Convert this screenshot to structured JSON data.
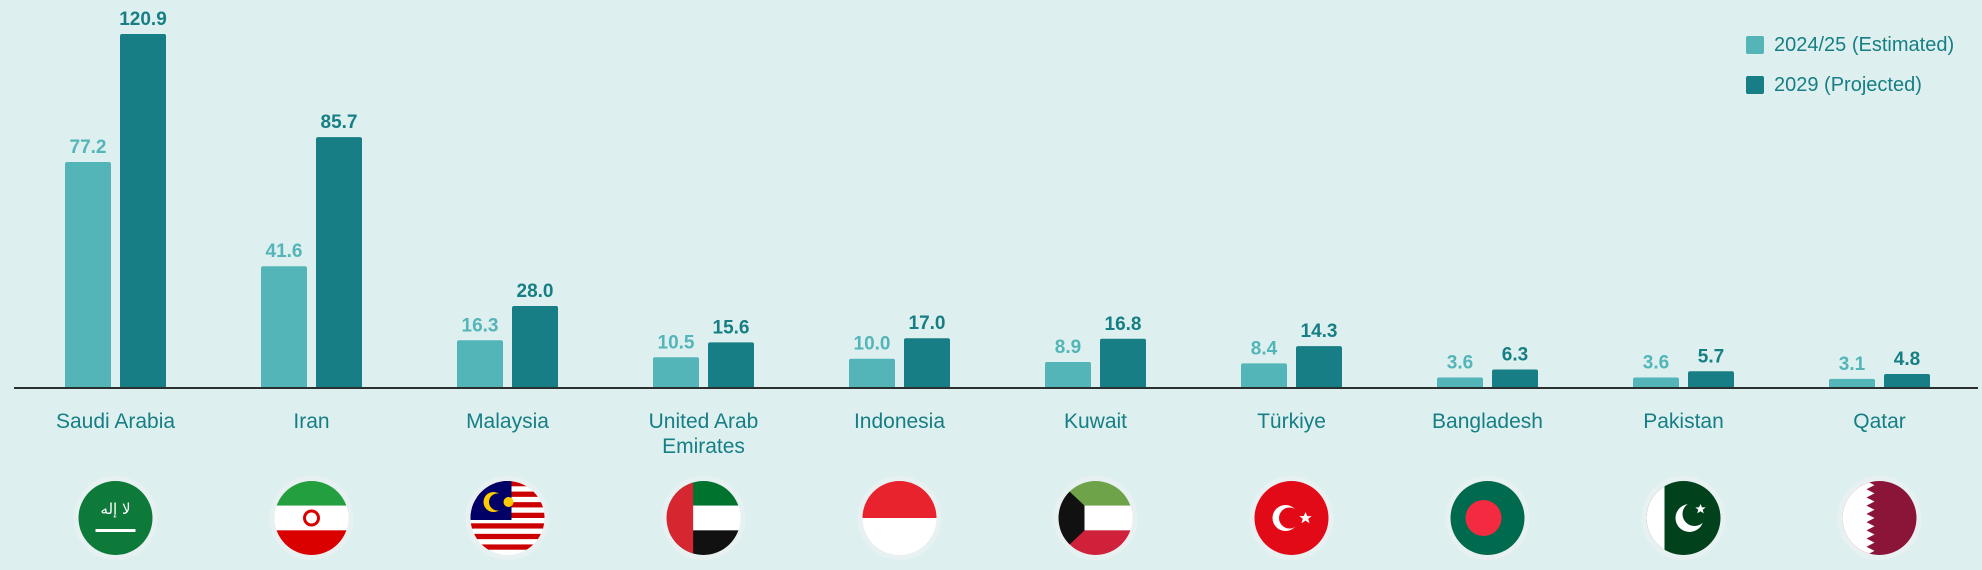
{
  "colors": {
    "background": "#ddf0ef",
    "estimated": "#54b5b9",
    "projected": "#167e84",
    "axis": "#2a2f30"
  },
  "legend": {
    "items": [
      {
        "label": "2024/25 (Estimated)",
        "color": "#54b5b9"
      },
      {
        "label": "2029 (Projected)",
        "color": "#167e84"
      }
    ],
    "position": "top-right"
  },
  "chart_data": {
    "type": "bar",
    "categories": [
      [
        "Saudi Arabia"
      ],
      [
        "Iran"
      ],
      [
        "Malaysia"
      ],
      [
        "United Arab",
        "Emirates"
      ],
      [
        "Indonesia"
      ],
      [
        "Kuwait"
      ],
      [
        "Türkiye"
      ],
      [
        "Bangladesh"
      ],
      [
        "Pakistan"
      ],
      [
        "Qatar"
      ]
    ],
    "series": [
      {
        "name": "2024/25 (Estimated)",
        "values": [
          77.2,
          41.6,
          16.3,
          10.5,
          10.0,
          8.9,
          8.4,
          3.6,
          3.6,
          3.1
        ]
      },
      {
        "name": "2029 (Projected)",
        "values": [
          120.9,
          85.7,
          28.0,
          15.6,
          17.0,
          16.8,
          14.3,
          6.3,
          5.7,
          4.8
        ]
      }
    ],
    "data_labels": [
      [
        "77.2",
        "41.6",
        "16.3",
        "10.5",
        "10.0",
        "8.9",
        "8.4",
        "3.6",
        "3.6",
        "3.1"
      ],
      [
        "120.9",
        "85.7",
        "28.0",
        "15.6",
        "17.0",
        "16.8",
        "14.3",
        "6.3",
        "5.7",
        "4.8"
      ]
    ],
    "ylim": [
      0,
      123
    ],
    "grid": false,
    "legend_placement": "top-right"
  },
  "flags": [
    {
      "icon": "saudi-arabia-flag-icon"
    },
    {
      "icon": "iran-flag-icon"
    },
    {
      "icon": "malaysia-flag-icon"
    },
    {
      "icon": "uae-flag-icon"
    },
    {
      "icon": "indonesia-flag-icon"
    },
    {
      "icon": "kuwait-flag-icon"
    },
    {
      "icon": "turkiye-flag-icon"
    },
    {
      "icon": "bangladesh-flag-icon"
    },
    {
      "icon": "pakistan-flag-icon"
    },
    {
      "icon": "qatar-flag-icon"
    }
  ]
}
